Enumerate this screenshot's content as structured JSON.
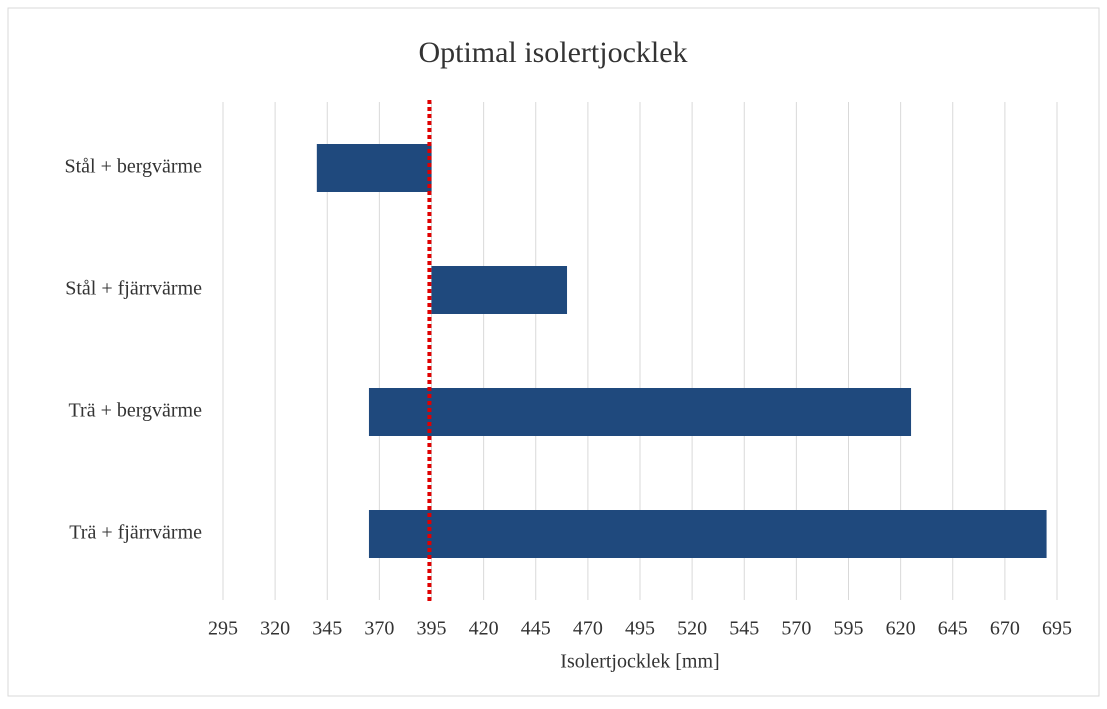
{
  "chart_data": {
    "type": "range_bar",
    "title": "Optimal isolertjocklek",
    "x_label": "Isolertjocklek [mm]",
    "categories": [
      "Stål + bergvärme",
      "Stål + fjärrvärme",
      "Trä + bergvärme",
      "Trä + fjärrvärme"
    ],
    "starts": [
      340,
      395,
      365,
      365
    ],
    "ends": [
      395,
      460,
      625,
      690
    ],
    "color": "#1f497d",
    "xlim": [
      295,
      695
    ],
    "xticks": [
      295,
      320,
      345,
      370,
      395,
      420,
      445,
      470,
      495,
      520,
      545,
      570,
      595,
      620,
      645,
      670,
      695
    ],
    "grid": true,
    "reference_line": 394,
    "reference_color": "#e00000"
  }
}
